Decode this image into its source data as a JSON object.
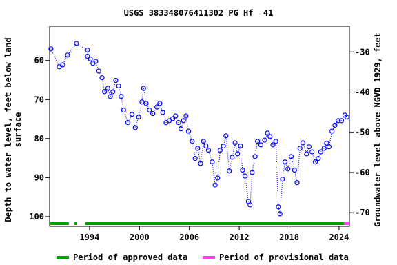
{
  "chart_data": {
    "type": "scatter",
    "title": "USGS 383348076411302 PG Hf  41",
    "y_label": [
      "Depth to water level, feet below land",
      "surface"
    ],
    "y2_label": "Groundwater level above NGVD 1929, feet",
    "xlim": [
      1989.2,
      2025.25
    ],
    "xticks": [
      1994,
      2000,
      2006,
      2012,
      2018,
      2024
    ],
    "ylim": [
      51.2,
      102.5
    ],
    "y_inverted": true,
    "yticks": [
      60,
      70,
      80,
      90,
      100
    ],
    "y2lim": [
      -73.4,
      -23.6
    ],
    "y2ticks": [
      -30,
      -40,
      -50,
      -60,
      -70
    ],
    "series": [
      {
        "name": "Depth to water level",
        "color": "#0000ff",
        "x": [
          1989.36,
          1990.35,
          1990.77,
          1991.35,
          1992.43,
          1993.75,
          1993.75,
          1994.1,
          1994.4,
          1994.75,
          1995.1,
          1995.5,
          1995.8,
          1996.2,
          1996.5,
          1996.8,
          1997.15,
          1997.5,
          1997.8,
          1998.1,
          1998.6,
          1999.1,
          1999.5,
          1999.9,
          2000.3,
          2000.5,
          2000.8,
          2001.2,
          2001.6,
          2002.1,
          2002.45,
          2002.8,
          2003.2,
          2003.6,
          2004.0,
          2004.35,
          2004.7,
          2005.0,
          2005.3,
          2005.6,
          2005.9,
          2006.35,
          2006.7,
          2007.0,
          2007.35,
          2007.7,
          2008.0,
          2008.3,
          2008.75,
          2009.1,
          2009.4,
          2009.7,
          2010.1,
          2010.4,
          2010.8,
          2011.15,
          2011.5,
          2011.8,
          2012.15,
          2012.4,
          2012.7,
          2013.1,
          2013.3,
          2013.55,
          2013.9,
          2014.2,
          2014.6,
          2015.05,
          2015.4,
          2015.7,
          2016.05,
          2016.4,
          2016.7,
          2016.9,
          2017.2,
          2017.5,
          2017.85,
          2018.25,
          2018.65,
          2018.95,
          2019.3,
          2019.65,
          2020.1,
          2020.4,
          2020.75,
          2021.15,
          2021.5,
          2021.8,
          2022.2,
          2022.5,
          2022.8,
          2023.15,
          2023.5,
          2023.9,
          2024.3,
          2024.7,
          2024.95
        ],
        "values": [
          57.0,
          61.6,
          61.1,
          58.6,
          55.6,
          57.3,
          58.9,
          59.6,
          60.7,
          60.2,
          62.7,
          64.4,
          68.0,
          67.1,
          69.2,
          68.0,
          65.1,
          66.5,
          69.2,
          72.7,
          75.9,
          73.8,
          77.2,
          74.5,
          70.6,
          67.1,
          71.0,
          72.7,
          73.6,
          71.9,
          71.0,
          73.3,
          75.9,
          75.4,
          74.9,
          74.2,
          75.9,
          77.5,
          75.4,
          74.2,
          78.1,
          80.7,
          85.1,
          82.5,
          86.4,
          80.7,
          81.9,
          83.0,
          86.0,
          91.9,
          90.1,
          83.0,
          81.9,
          79.3,
          88.3,
          84.8,
          81.1,
          83.9,
          81.9,
          88.1,
          89.6,
          96.1,
          97.0,
          88.7,
          84.6,
          80.7,
          81.6,
          80.4,
          78.6,
          79.5,
          81.6,
          80.7,
          97.5,
          99.3,
          90.4,
          86.0,
          87.8,
          84.6,
          88.1,
          91.3,
          82.5,
          81.1,
          83.9,
          82.1,
          83.4,
          86.0,
          85.1,
          83.4,
          82.5,
          81.2,
          82.1,
          78.1,
          76.6,
          75.4,
          75.4,
          74.0,
          74.5
        ]
      }
    ],
    "periods": [
      {
        "name": "Period of approved data",
        "color": "#00a000",
        "spans": [
          [
            1989.2,
            1991.5
          ],
          [
            1992.2,
            1992.5
          ],
          [
            1993.5,
            2024.6
          ]
        ]
      },
      {
        "name": "Period of provisional data",
        "color": "#ff44ff",
        "spans": [
          [
            2024.6,
            2025.25
          ]
        ]
      }
    ]
  }
}
